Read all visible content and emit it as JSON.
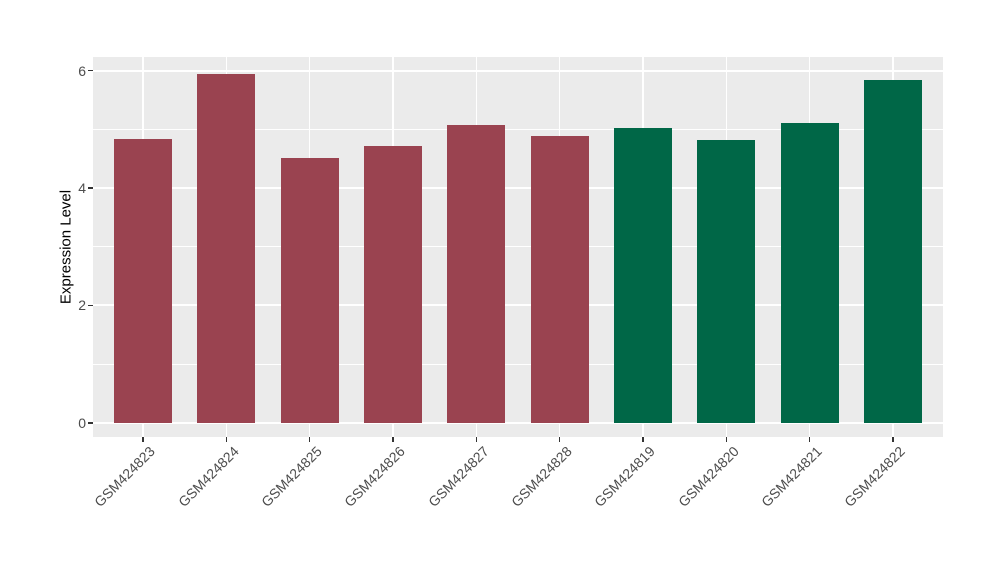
{
  "chart_data": {
    "type": "bar",
    "title": "",
    "xlabel": "",
    "ylabel": "Expression Level",
    "categories": [
      "GSM424823",
      "GSM424824",
      "GSM424825",
      "GSM424826",
      "GSM424827",
      "GSM424828",
      "GSM424819",
      "GSM424820",
      "GSM424821",
      "GSM424822"
    ],
    "values": [
      4.83,
      5.94,
      4.51,
      4.71,
      5.08,
      4.88,
      5.02,
      4.82,
      5.1,
      5.84
    ],
    "bar_colors": [
      "#9A4350",
      "#9A4350",
      "#9A4350",
      "#9A4350",
      "#9A4350",
      "#9A4350",
      "#006747",
      "#006747",
      "#006747",
      "#006747"
    ],
    "group_colors": {
      "maroon_group": "#9A4350",
      "green_group": "#006747"
    },
    "yticks": [
      0,
      2,
      4,
      6
    ],
    "yticks_minor": [
      1,
      3,
      5
    ],
    "ylim": [
      -0.24,
      6.23
    ],
    "grid": true,
    "legend_position": "none",
    "panel_bg": "#EBEBEB",
    "grid_color": "#FFFFFF",
    "tick_mark_color": "#333333",
    "axis_text_color": "#4D4D4D",
    "axis_title_color": "#000000"
  }
}
